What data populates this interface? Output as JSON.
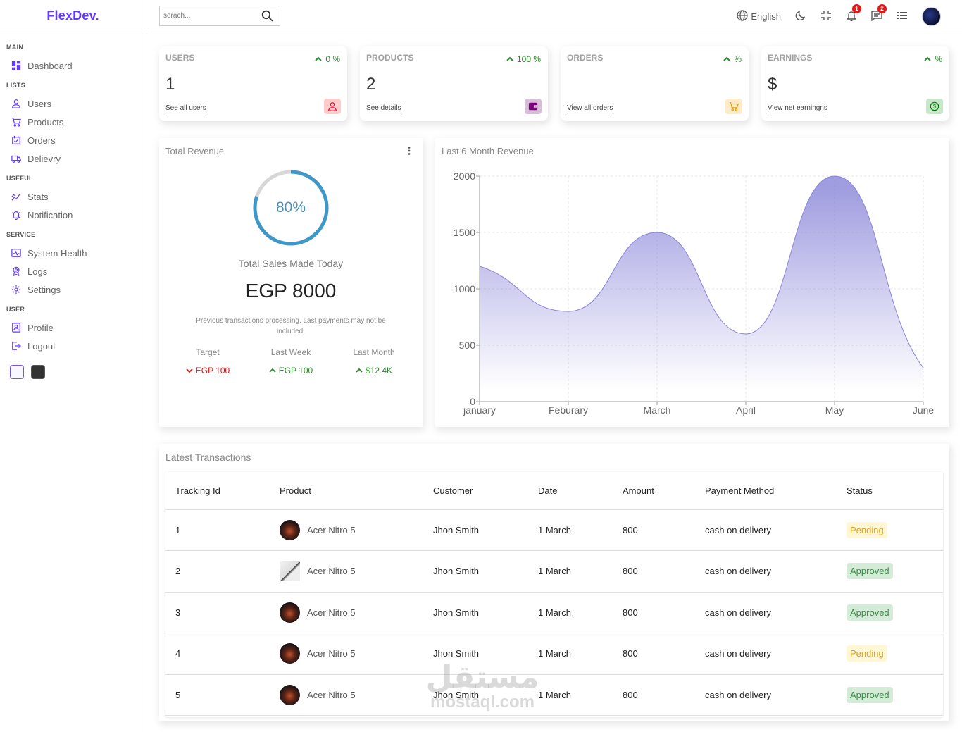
{
  "app": {
    "logo": "FlexDev."
  },
  "sidebar": {
    "sections": [
      {
        "title": "MAIN",
        "items": [
          {
            "label": "Dashboard",
            "icon": "dashboard-icon"
          }
        ]
      },
      {
        "title": "LISTS",
        "items": [
          {
            "label": "Users",
            "icon": "user-icon"
          },
          {
            "label": "Products",
            "icon": "cart-icon"
          },
          {
            "label": "Orders",
            "icon": "orders-icon"
          },
          {
            "label": "Delievry",
            "icon": "truck-icon"
          }
        ]
      },
      {
        "title": "USEFUL",
        "items": [
          {
            "label": "Stats",
            "icon": "stats-icon"
          },
          {
            "label": "Notification",
            "icon": "bell-icon"
          }
        ]
      },
      {
        "title": "SERVICE",
        "items": [
          {
            "label": "System Health",
            "icon": "health-icon"
          },
          {
            "label": "Logs",
            "icon": "logs-icon"
          },
          {
            "label": "Settings",
            "icon": "gear-icon"
          }
        ]
      },
      {
        "title": "USER",
        "items": [
          {
            "label": "Profile",
            "icon": "profile-icon"
          },
          {
            "label": "Logout",
            "icon": "logout-icon"
          }
        ]
      }
    ]
  },
  "navbar": {
    "search_placeholder": "serach...",
    "language": "English",
    "notifications_count": "1",
    "messages_count": "2"
  },
  "widgets": [
    {
      "title": "USERS",
      "percentage": "0 %",
      "counter": "1",
      "link": "See all users",
      "icon": "person-icon",
      "icon_color": "#dc143c",
      "icon_bg": "#ffcccc"
    },
    {
      "title": "PRODUCTS",
      "percentage": "100 %",
      "counter": "2",
      "link": "See details",
      "icon": "wallet-icon",
      "icon_color": "#800080",
      "icon_bg": "#d8bfd8"
    },
    {
      "title": "ORDERS",
      "percentage": "%",
      "counter": "",
      "link": "View all orders",
      "icon": "shopping-cart-icon",
      "icon_color": "#daa520",
      "icon_bg": "#fdebc8"
    },
    {
      "title": "EARNINGS",
      "percentage": "%",
      "counter": "$",
      "link": "View net earningns",
      "icon": "dollar-icon",
      "icon_color": "#008000",
      "icon_bg": "#c8e6c9"
    }
  ],
  "featured": {
    "title": "Total Revenue",
    "progress": 80,
    "progress_label": "80%",
    "sales_label": "Total Sales Made Today",
    "amount": "EGP 8000",
    "description": "Previous transactions processing. Last payments may not be included.",
    "summary": [
      {
        "title": "Target",
        "value": "EGP 100",
        "trend": "down"
      },
      {
        "title": "Last Week",
        "value": "EGP 100",
        "trend": "up"
      },
      {
        "title": "Last Month",
        "value": "$12.4K",
        "trend": "up"
      }
    ]
  },
  "chart_data": {
    "type": "area",
    "title": "Last 6 Month Revenue",
    "categories": [
      "january",
      "Feburary",
      "March",
      "April",
      "May",
      "June"
    ],
    "values": [
      1200,
      800,
      1500,
      600,
      2000,
      300
    ],
    "ylim": [
      0,
      2000
    ],
    "yticks": [
      0,
      500,
      1000,
      1500,
      2000
    ],
    "grid": true,
    "color": "#8884d8"
  },
  "transactions": {
    "title": "Latest Transactions",
    "columns": [
      "Tracking Id",
      "Product",
      "Customer",
      "Date",
      "Amount",
      "Payment Method",
      "Status"
    ],
    "rows": [
      {
        "id": "1",
        "product": "Acer Nitro 5",
        "customer": "Jhon Smith",
        "date": "1 March",
        "amount": "800",
        "method": "cash on delivery",
        "status": "Pending"
      },
      {
        "id": "2",
        "product": "Acer Nitro 5",
        "customer": "Jhon Smith",
        "date": "1 March",
        "amount": "800",
        "method": "cash on delivery",
        "status": "Approved"
      },
      {
        "id": "3",
        "product": "Acer Nitro 5",
        "customer": "Jhon Smith",
        "date": "1 March",
        "amount": "800",
        "method": "cash on delivery",
        "status": "Approved"
      },
      {
        "id": "4",
        "product": "Acer Nitro 5",
        "customer": "Jhon Smith",
        "date": "1 March",
        "amount": "800",
        "method": "cash on delivery",
        "status": "Pending"
      },
      {
        "id": "5",
        "product": "Acer Nitro 5",
        "customer": "Jhon Smith",
        "date": "1 March",
        "amount": "800",
        "method": "cash on delivery",
        "status": "Approved"
      }
    ]
  },
  "watermark": {
    "arabic": "مستقل",
    "latin": "mostaql.com"
  }
}
